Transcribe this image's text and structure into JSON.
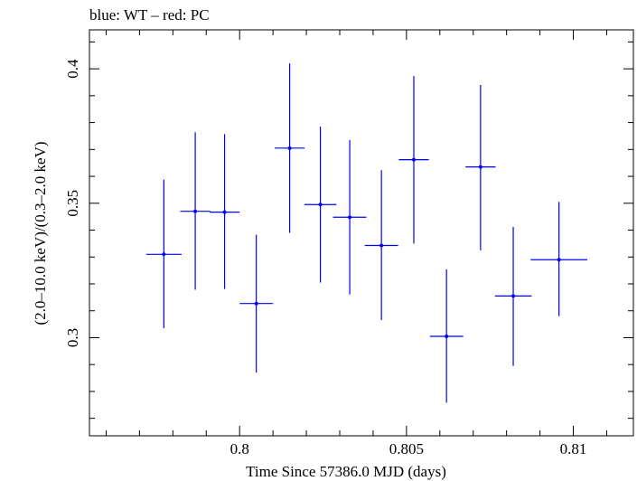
{
  "chart_data": {
    "type": "scatter",
    "title": "blue: WT – red: PC",
    "xlabel": "Time Since 57386.0 MJD (days)",
    "ylabel": "(2.0–10.0 keV)/(0.3–2.0 keV)",
    "xlim": [
      0.7955,
      0.8118
    ],
    "ylim": [
      0.2635,
      0.4145
    ],
    "x_ticks": [
      {
        "value": 0.8,
        "label": "0.8"
      },
      {
        "value": 0.805,
        "label": "0.805"
      },
      {
        "value": 0.81,
        "label": "0.81"
      }
    ],
    "y_ticks": [
      {
        "value": 0.3,
        "label": "0.3"
      },
      {
        "value": 0.35,
        "label": "0.35"
      },
      {
        "value": 0.4,
        "label": "0.4"
      }
    ],
    "series": [
      {
        "name": "WT",
        "color": "#0000ff",
        "points": [
          {
            "x": 0.79773,
            "xerr": 0.00053,
            "y": 0.331,
            "ylow": 0.3035,
            "yhigh": 0.3588
          },
          {
            "x": 0.79867,
            "xerr": 0.00045,
            "y": 0.347,
            "ylow": 0.3178,
            "yhigh": 0.3764
          },
          {
            "x": 0.79955,
            "xerr": 0.00045,
            "y": 0.3467,
            "ylow": 0.3181,
            "yhigh": 0.3757
          },
          {
            "x": 0.8005,
            "xerr": 0.0005,
            "y": 0.3127,
            "ylow": 0.287,
            "yhigh": 0.3383
          },
          {
            "x": 0.8015,
            "xerr": 0.00045,
            "y": 0.3705,
            "ylow": 0.339,
            "yhigh": 0.402
          },
          {
            "x": 0.80242,
            "xerr": 0.00048,
            "y": 0.3495,
            "ylow": 0.3205,
            "yhigh": 0.3785
          },
          {
            "x": 0.8033,
            "xerr": 0.0005,
            "y": 0.3448,
            "ylow": 0.3161,
            "yhigh": 0.3735
          },
          {
            "x": 0.80425,
            "xerr": 0.0005,
            "y": 0.3343,
            "ylow": 0.3065,
            "yhigh": 0.3623
          },
          {
            "x": 0.80522,
            "xerr": 0.00045,
            "y": 0.3662,
            "ylow": 0.335,
            "yhigh": 0.3973
          },
          {
            "x": 0.8062,
            "xerr": 0.0005,
            "y": 0.3005,
            "ylow": 0.2758,
            "yhigh": 0.3254
          },
          {
            "x": 0.80722,
            "xerr": 0.00045,
            "y": 0.3635,
            "ylow": 0.3325,
            "yhigh": 0.394
          },
          {
            "x": 0.8082,
            "xerr": 0.00055,
            "y": 0.3155,
            "ylow": 0.2895,
            "yhigh": 0.3412
          },
          {
            "x": 0.80957,
            "xerr": 0.00085,
            "y": 0.329,
            "ylow": 0.308,
            "yhigh": 0.3505
          }
        ]
      }
    ]
  }
}
